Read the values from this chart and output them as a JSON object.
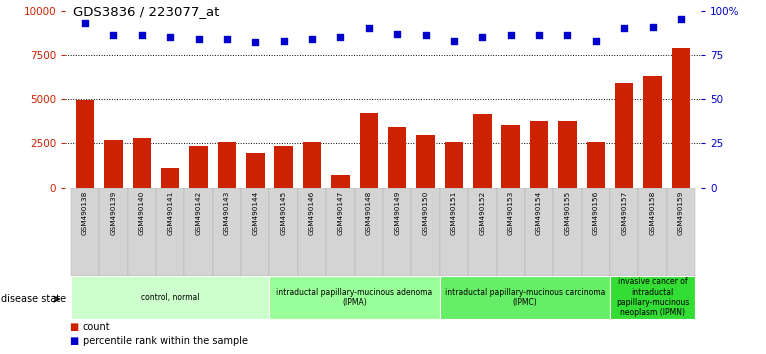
{
  "title": "GDS3836 / 223077_at",
  "samples": [
    "GSM490138",
    "GSM490139",
    "GSM490140",
    "GSM490141",
    "GSM490142",
    "GSM490143",
    "GSM490144",
    "GSM490145",
    "GSM490146",
    "GSM490147",
    "GSM490148",
    "GSM490149",
    "GSM490150",
    "GSM490151",
    "GSM490152",
    "GSM490153",
    "GSM490154",
    "GSM490155",
    "GSM490156",
    "GSM490157",
    "GSM490158",
    "GSM490159"
  ],
  "counts": [
    4950,
    2700,
    2800,
    1100,
    2350,
    2550,
    1950,
    2350,
    2600,
    700,
    4200,
    3450,
    3000,
    2550,
    4150,
    3550,
    3750,
    3750,
    2550,
    5900,
    6300,
    7900
  ],
  "percentiles": [
    93,
    86,
    86,
    85,
    84,
    84,
    82,
    83,
    84,
    85,
    90,
    87,
    86,
    83,
    85,
    86,
    86,
    86,
    83,
    90,
    91,
    95
  ],
  "bar_color": "#cc2200",
  "dot_color": "#0000cc",
  "ylim_left": [
    0,
    10000
  ],
  "ylim_right": [
    0,
    100
  ],
  "yticks_left": [
    0,
    2500,
    5000,
    7500,
    10000
  ],
  "yticks_right": [
    0,
    25,
    50,
    75,
    100
  ],
  "disease_groups": [
    {
      "label": "control, normal",
      "start": 0,
      "end": 7,
      "color": "#ccffcc"
    },
    {
      "label": "intraductal papillary-mucinous adenoma\n(IPMA)",
      "start": 7,
      "end": 13,
      "color": "#99ff99"
    },
    {
      "label": "intraductal papillary-mucinous carcinoma\n(IPMC)",
      "start": 13,
      "end": 19,
      "color": "#66ee66"
    },
    {
      "label": "invasive cancer of\nintraductal\npapillary-mucinous\nneoplasm (IPMN)",
      "start": 19,
      "end": 22,
      "color": "#33dd33"
    }
  ],
  "legend_count_label": "count",
  "legend_pct_label": "percentile rank within the sample",
  "disease_state_label": "disease state",
  "tick_color_left": "#cc2200",
  "tick_color_right": "#0000cc",
  "grid_ticks": [
    2500,
    5000,
    7500
  ]
}
